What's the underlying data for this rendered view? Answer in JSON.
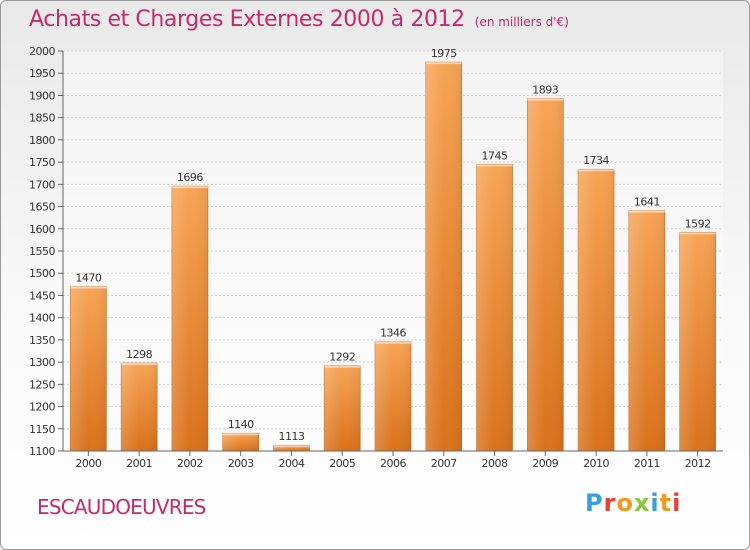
{
  "header": {
    "title": "Achats et Charges Externes 2000 à 2012",
    "subtitle": "(en milliers d'€)"
  },
  "commune": "ESCAUDOEUVRES",
  "logo": {
    "text": "Proxiti",
    "colors": [
      "#3aa0dc",
      "#e8413c",
      "#f29a1f",
      "#8cc63f",
      "#3aa0dc",
      "#f29a1f",
      "#e8413c"
    ]
  },
  "chart_data": {
    "type": "bar",
    "title": "Achats et Charges Externes 2000 à 2012",
    "subtitle": "(en milliers d'€)",
    "categories": [
      "2000",
      "2001",
      "2002",
      "2003",
      "2004",
      "2005",
      "2006",
      "2007",
      "2008",
      "2009",
      "2010",
      "2011",
      "2012"
    ],
    "values": [
      1470,
      1298,
      1696,
      1140,
      1113,
      1292,
      1346,
      1975,
      1745,
      1893,
      1734,
      1641,
      1592
    ],
    "ylim": [
      1100,
      2000
    ],
    "yticks": [
      1100,
      1150,
      1200,
      1250,
      1300,
      1350,
      1400,
      1450,
      1500,
      1550,
      1600,
      1650,
      1700,
      1750,
      1800,
      1850,
      1900,
      1950,
      2000
    ],
    "grid": true,
    "bar_color": "#e98a2c",
    "bar_color_light": "#f7a455"
  }
}
